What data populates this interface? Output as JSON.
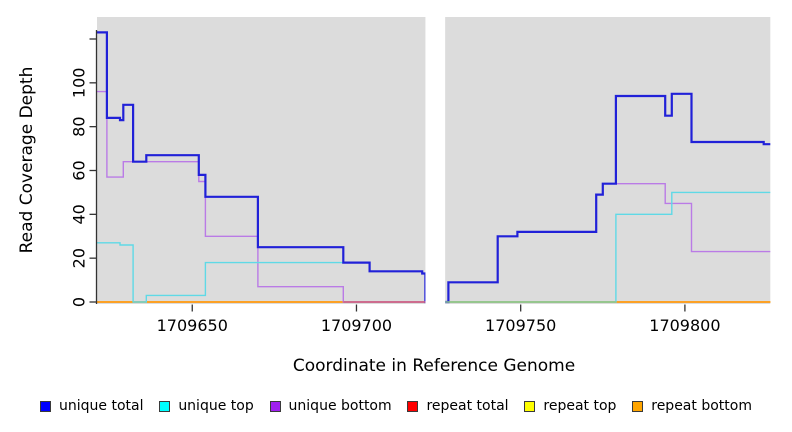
{
  "chart_data": {
    "type": "line",
    "subtype": "step-coverage",
    "title": "",
    "xlabel": "Coordinate in Reference Genome",
    "ylabel": "Read Coverage Depth",
    "xlim": [
      1709621,
      1709826
    ],
    "ylim": [
      0,
      120
    ],
    "x_ticks": [
      1709650,
      1709700,
      1709750,
      1709800
    ],
    "y_ticks": [
      0,
      20,
      40,
      60,
      80,
      100,
      120
    ],
    "y_tick_labels": [
      "0",
      "20",
      "40",
      "60",
      "80",
      "100",
      ""
    ],
    "grid": false,
    "panel_bg": "#dcdcdc",
    "gap_band": {
      "x_start": 1709721,
      "x_end": 1709727,
      "color": "#ffffff"
    },
    "series": [
      {
        "name": "repeat total",
        "legend_color": "#ff0000",
        "line_color": "#dd2222",
        "line_width": 1.2,
        "points": [
          [
            1709621,
            0
          ],
          [
            1709826,
            0
          ]
        ]
      },
      {
        "name": "repeat top",
        "legend_color": "#ffff00",
        "line_color": "#eedd00",
        "line_width": 1.2,
        "points": [
          [
            1709621,
            0
          ],
          [
            1709826,
            0
          ]
        ]
      },
      {
        "name": "repeat bottom",
        "legend_color": "#ffa500",
        "line_color": "#ff9e1a",
        "line_width": 1.8,
        "points": [
          [
            1709621,
            0
          ],
          [
            1709826,
            0
          ]
        ]
      },
      {
        "name": "unique bottom",
        "legend_color": "#a020f0",
        "line_color": "#ba7be6",
        "line_width": 1.4,
        "points": [
          [
            1709621,
            96
          ],
          [
            1709624,
            57
          ],
          [
            1709629,
            64
          ],
          [
            1709652,
            55
          ],
          [
            1709654,
            30
          ],
          [
            1709670,
            7
          ],
          [
            1709696,
            0
          ],
          [
            1709728,
            9
          ],
          [
            1709743,
            30
          ],
          [
            1709749,
            32
          ],
          [
            1709773,
            49
          ],
          [
            1709775,
            54
          ],
          [
            1709794,
            45
          ],
          [
            1709802,
            23
          ],
          [
            1709826,
            23
          ]
        ]
      },
      {
        "name": "unique top",
        "legend_color": "#00ffff",
        "line_color": "#5fd9e6",
        "line_width": 1.4,
        "points": [
          [
            1709621,
            27
          ],
          [
            1709628,
            26
          ],
          [
            1709632,
            0
          ],
          [
            1709636,
            3
          ],
          [
            1709654,
            18
          ],
          [
            1709704,
            14
          ],
          [
            1709720,
            13
          ],
          [
            1709721,
            0
          ],
          [
            1709779,
            40
          ],
          [
            1709796,
            50
          ],
          [
            1709826,
            50
          ]
        ]
      },
      {
        "name": "unique total",
        "legend_color": "#0000ff",
        "line_color": "#2121d8",
        "line_width": 2.2,
        "points": [
          [
            1709621,
            123
          ],
          [
            1709624,
            84
          ],
          [
            1709628,
            83
          ],
          [
            1709629,
            90
          ],
          [
            1709632,
            64
          ],
          [
            1709636,
            67
          ],
          [
            1709652,
            58
          ],
          [
            1709654,
            48
          ],
          [
            1709670,
            25
          ],
          [
            1709696,
            18
          ],
          [
            1709704,
            14
          ],
          [
            1709720,
            13
          ],
          [
            1709721,
            0
          ],
          [
            1709728,
            9
          ],
          [
            1709743,
            30
          ],
          [
            1709749,
            32
          ],
          [
            1709773,
            49
          ],
          [
            1709775,
            54
          ],
          [
            1709779,
            94
          ],
          [
            1709794,
            85
          ],
          [
            1709796,
            95
          ],
          [
            1709802,
            73
          ],
          [
            1709824,
            72
          ],
          [
            1709826,
            72
          ]
        ]
      }
    ],
    "baseline_overlap_segments": [
      {
        "x_start": 1709696,
        "x_end": 1709721,
        "value": 0,
        "color": "#c9608f"
      },
      {
        "x_start": 1709727,
        "x_end": 1709779,
        "value": 0,
        "color": "#8fc98f"
      }
    ],
    "legend": [
      {
        "label": "unique total",
        "color": "#0000ff"
      },
      {
        "label": "unique top",
        "color": "#00ffff"
      },
      {
        "label": "unique bottom",
        "color": "#a020f0"
      },
      {
        "label": "repeat total",
        "color": "#ff0000"
      },
      {
        "label": "repeat top",
        "color": "#ffff00"
      },
      {
        "label": "repeat bottom",
        "color": "#ffa500"
      }
    ],
    "axis_color": "#333333",
    "tick_label_color": "#000000"
  }
}
